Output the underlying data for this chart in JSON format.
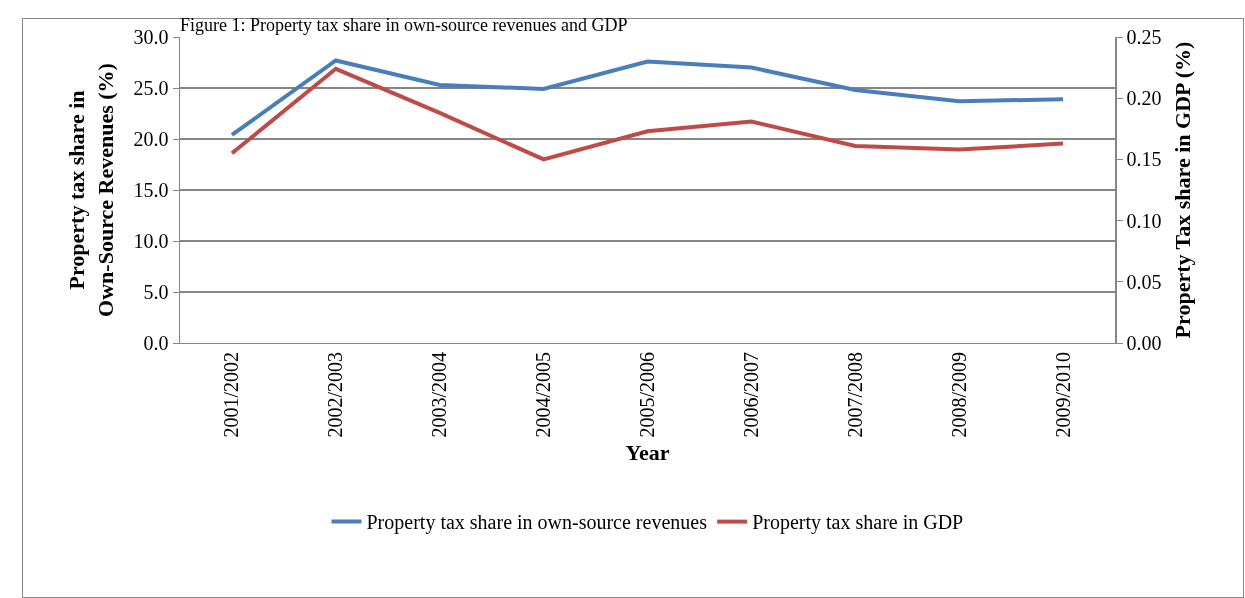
{
  "chart_data": {
    "type": "line",
    "title": "Figure 1: Property tax share in own-source revenues and GDP",
    "xlabel": "Year",
    "ylabel": "Property tax share in Own-Source Revenues (%)",
    "y2label": "Property Tax share in GDP (%)",
    "categories": [
      "2001/2002",
      "2002/2003",
      "2003/2004",
      "2004/2005",
      "2005/2006",
      "2006/2007",
      "2007/2008",
      "2008/2009",
      "2009/2010"
    ],
    "series": [
      {
        "name": "Property tax share in own-source revenues",
        "color": "#4a7ebb",
        "values": [
          20.4,
          27.7,
          25.3,
          24.9,
          27.6,
          27.0,
          24.8,
          23.7,
          23.9
        ]
      },
      {
        "name": "Property tax share in GDP",
        "color": "#be4b48",
        "axis": "y2",
        "values": [
          0.155,
          0.224,
          0.188,
          0.15,
          0.173,
          0.181,
          0.161,
          0.158,
          0.163
        ]
      }
    ],
    "ylim": [
      0,
      30
    ],
    "yticks": [
      {
        "value": 0,
        "label": "0.0"
      },
      {
        "value": 5,
        "label": "5.0"
      },
      {
        "value": 10,
        "label": "10.0"
      },
      {
        "value": 15,
        "label": "15.0"
      },
      {
        "value": 20,
        "label": "20.0"
      },
      {
        "value": 25,
        "label": "25.0"
      },
      {
        "value": 30,
        "label": "30.0"
      }
    ],
    "y2lim": [
      0,
      0.25
    ],
    "y2ticks": [
      {
        "value": 0,
        "label": "0.00"
      },
      {
        "value": 0.05,
        "label": "0.05"
      },
      {
        "value": 0.1,
        "label": "0.10"
      },
      {
        "value": 0.15,
        "label": "0.15"
      },
      {
        "value": 0.2,
        "label": "0.20"
      },
      {
        "value": 0.25,
        "label": "0.25"
      }
    ],
    "grid": "y",
    "legend": "bottom",
    "marker": "none",
    "line_style": "solid"
  }
}
